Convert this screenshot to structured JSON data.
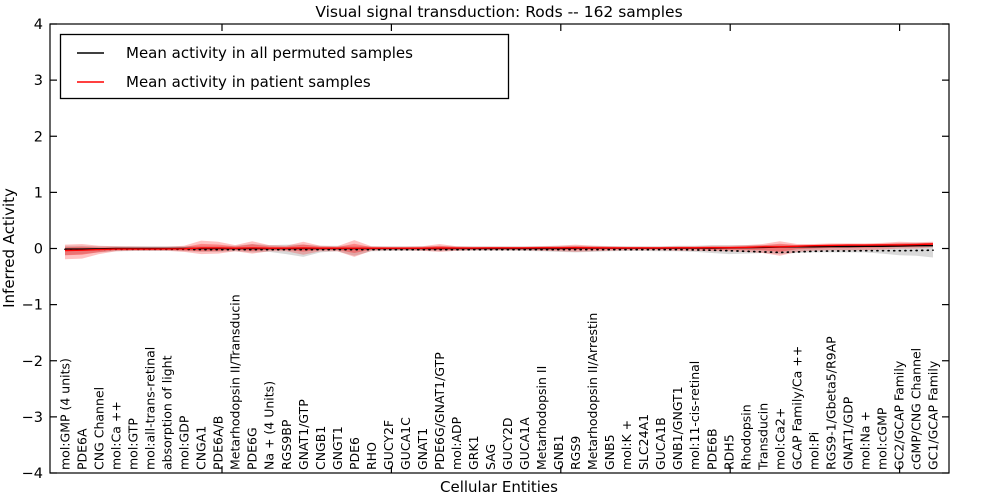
{
  "title": "Visual signal transduction: Rods -- 162 samples",
  "ylabel": "Inferred Activity",
  "xlabel": "Cellular Entities",
  "legend": [
    {
      "label": "Mean activity in all permuted samples",
      "color": "#000000"
    },
    {
      "label": "Mean activity in patient samples",
      "color": "#ff0000"
    }
  ],
  "colors": {
    "permuted_line": "#000000",
    "patient_line": "#ff0000",
    "permuted_band": "#000000",
    "patient_band": "#ff0000",
    "spine": "#000000"
  },
  "chart_data": {
    "type": "line",
    "title": "Visual signal transduction: Rods -- 162 samples",
    "xlabel": "Cellular Entities",
    "ylabel": "Inferred Activity",
    "ylim": [
      -4,
      4
    ],
    "grid": false,
    "legend_position": "upper left",
    "yticks": [
      {
        "v": 4,
        "label": "4"
      },
      {
        "v": 3,
        "label": "3"
      },
      {
        "v": 2,
        "label": "2"
      },
      {
        "v": 1,
        "label": "1"
      },
      {
        "v": 0,
        "label": "0"
      },
      {
        "v": -1,
        "label": "−1"
      },
      {
        "v": -2,
        "label": "−2"
      },
      {
        "v": -3,
        "label": "−3"
      },
      {
        "v": -4,
        "label": "−4"
      }
    ],
    "xtick_values": [
      10,
      20,
      30,
      40,
      50
    ],
    "categories": [
      "mol:GMP (4 units)",
      "PDE6A",
      "CNG Channel",
      "mol:Ca ++",
      "mol:GTP",
      "mol:all-trans-retinal",
      "absorption of light",
      "mol:GDP",
      "CNGA1",
      "PDE6A/B",
      "Metarhodopsin II/Transducin",
      "PDE6G",
      "Na + (4 Units)",
      "RGS9BP",
      "GNAT1/GTP",
      "CNGB1",
      "GNGT1",
      "PDE6",
      "RHO",
      "GUCY2F",
      "GUCA1C",
      "GNAT1",
      "PDE6G/GNAT1/GTP",
      "mol:ADP",
      "GRK1",
      "SAG",
      "GUCY2D",
      "GUCA1A",
      "Metarhodopsin II",
      "GNB1",
      "RGS9",
      "Metarhodopsin II/Arrestin",
      "GNB5",
      "mol:K +",
      "SLC24A1",
      "GUCA1B",
      "GNB1/GNGT1",
      "mol:11-cis-retinal",
      "PDE6B",
      "RDH5",
      "Rhodopsin",
      "Transducin",
      "mol:Ca2+",
      "GCAP Family/Ca ++",
      "mol:Pi",
      "RGS9-1/Gbeta5/R9AP",
      "GNAT1/GDP",
      "mol:Na +",
      "mol:cGMP",
      "GC2/GCAP Family",
      "cGMP/CNG Channel",
      "GC1/GCAP Family"
    ],
    "series": [
      {
        "name": "Mean activity in all permuted samples",
        "color": "#000000",
        "style": "solid",
        "values": [
          -0.01,
          -0.01,
          -0.005,
          0,
          0,
          0,
          0,
          0,
          0,
          0,
          0,
          0,
          0,
          0,
          0,
          0,
          0,
          0,
          0,
          0,
          0,
          0,
          0,
          0,
          0,
          0,
          0,
          0,
          0,
          0,
          0.005,
          0.005,
          0.005,
          0.005,
          0.005,
          0.005,
          0.005,
          0.005,
          0.005,
          0.01,
          0.015,
          0.02,
          0.025,
          0.03,
          0.03,
          0.035,
          0.035,
          0.04,
          0.04,
          0.045,
          0.05,
          0.05
        ]
      },
      {
        "name": "Permuted mean (dotted trace)",
        "color": "#000000",
        "style": "dotted",
        "values": [
          -0.015,
          -0.015,
          -0.015,
          -0.015,
          -0.015,
          -0.015,
          -0.015,
          -0.015,
          -0.02,
          -0.02,
          -0.02,
          -0.02,
          -0.02,
          -0.02,
          -0.02,
          -0.02,
          -0.02,
          -0.02,
          -0.02,
          -0.02,
          -0.02,
          -0.02,
          -0.02,
          -0.02,
          -0.02,
          -0.02,
          -0.02,
          -0.02,
          -0.02,
          -0.02,
          -0.02,
          -0.02,
          -0.02,
          -0.02,
          -0.02,
          -0.02,
          -0.02,
          -0.025,
          -0.03,
          -0.04,
          -0.05,
          -0.06,
          -0.07,
          -0.06,
          -0.05,
          -0.045,
          -0.045,
          -0.04,
          -0.04,
          -0.04,
          -0.035,
          -0.03
        ]
      },
      {
        "name": "Mean activity in patient samples",
        "color": "#ff0000",
        "style": "solid",
        "values": [
          -0.035,
          -0.03,
          -0.02,
          -0.01,
          -0.01,
          -0.01,
          -0.008,
          -0.005,
          0.01,
          0.01,
          0.005,
          0.01,
          0.005,
          0.005,
          0.01,
          0.005,
          0.005,
          0.005,
          0.005,
          0.005,
          0.005,
          0.005,
          0.01,
          0.008,
          0.008,
          0.01,
          0.01,
          0.01,
          0.012,
          0.012,
          0.015,
          0.012,
          0.01,
          0.01,
          0.01,
          0.01,
          0.012,
          0.012,
          0.015,
          0.015,
          0.02,
          0.03,
          0.03,
          0.04,
          0.05,
          0.055,
          0.06,
          0.06,
          0.065,
          0.065,
          0.07,
          0.08
        ]
      }
    ],
    "bands": [
      {
        "name": "permuted-std-band",
        "color": "#000000",
        "opacity": 0.15,
        "hi": [
          0.05,
          0.05,
          0.04,
          0.04,
          0.04,
          0.04,
          0.04,
          0.04,
          0.05,
          0.05,
          0.05,
          0.08,
          0.06,
          0.07,
          0.07,
          0.05,
          0.05,
          0.05,
          0.04,
          0.04,
          0.04,
          0.04,
          0.045,
          0.04,
          0.04,
          0.04,
          0.04,
          0.04,
          0.045,
          0.05,
          0.05,
          0.05,
          0.045,
          0.04,
          0.04,
          0.04,
          0.05,
          0.05,
          0.06,
          0.06,
          0.06,
          0.06,
          0.07,
          0.06,
          0.06,
          0.065,
          0.07,
          0.07,
          0.08,
          0.09,
          0.1,
          0.1
        ],
        "lo": [
          -0.12,
          -0.1,
          -0.07,
          -0.05,
          -0.045,
          -0.045,
          -0.045,
          -0.05,
          -0.06,
          -0.06,
          -0.05,
          -0.07,
          -0.06,
          -0.1,
          -0.15,
          -0.07,
          -0.05,
          -0.13,
          -0.05,
          -0.045,
          -0.045,
          -0.045,
          -0.05,
          -0.045,
          -0.04,
          -0.04,
          -0.04,
          -0.045,
          -0.05,
          -0.06,
          -0.07,
          -0.06,
          -0.05,
          -0.045,
          -0.045,
          -0.05,
          -0.05,
          -0.06,
          -0.08,
          -0.1,
          -0.09,
          -0.08,
          -0.1,
          -0.08,
          -0.07,
          -0.07,
          -0.07,
          -0.07,
          -0.09,
          -0.12,
          -0.13,
          -0.16
        ]
      },
      {
        "name": "patient-std-band",
        "color": "#ff0000",
        "opacity": 0.24,
        "hi": [
          0.07,
          0.08,
          0.05,
          0.04,
          0.035,
          0.03,
          0.03,
          0.05,
          0.14,
          0.12,
          0.06,
          0.13,
          0.06,
          0.05,
          0.12,
          0.05,
          0.04,
          0.15,
          0.04,
          0.03,
          0.03,
          0.04,
          0.08,
          0.04,
          0.03,
          0.03,
          0.03,
          0.03,
          0.04,
          0.05,
          0.07,
          0.05,
          0.04,
          0.03,
          0.03,
          0.03,
          0.04,
          0.04,
          0.05,
          0.05,
          0.06,
          0.08,
          0.13,
          0.08,
          0.08,
          0.09,
          0.09,
          0.09,
          0.1,
          0.12,
          0.11,
          0.12
        ],
        "lo": [
          -0.19,
          -0.18,
          -0.1,
          -0.05,
          -0.04,
          -0.04,
          -0.04,
          -0.06,
          -0.1,
          -0.09,
          -0.05,
          -0.09,
          -0.05,
          -0.05,
          -0.11,
          -0.05,
          -0.05,
          -0.15,
          -0.04,
          -0.03,
          -0.03,
          -0.04,
          -0.06,
          -0.04,
          -0.03,
          -0.03,
          -0.03,
          -0.03,
          -0.04,
          -0.05,
          -0.06,
          -0.05,
          -0.04,
          -0.03,
          -0.03,
          -0.03,
          -0.04,
          -0.04,
          -0.05,
          -0.05,
          -0.06,
          -0.08,
          -0.13,
          -0.06,
          -0.04,
          -0.03,
          -0.03,
          -0.03,
          -0.02,
          0.0,
          0.0,
          0.02
        ]
      }
    ]
  }
}
